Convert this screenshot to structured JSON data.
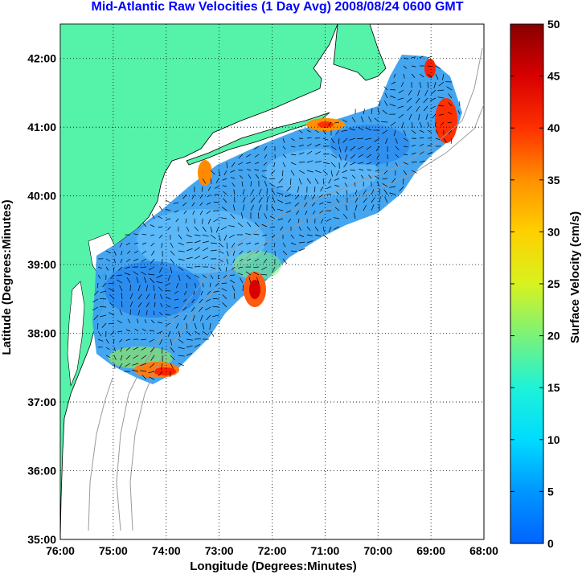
{
  "title": "Mid-Atlantic Raw Velocities (1 Day Avg) 2008/08/24 0600 GMT",
  "map": {
    "xlabel": "Longitude (Degrees:Minutes)",
    "ylabel": "Latitude (Degrees:Minutes)",
    "lon_ticks": [
      "76:00",
      "75:00",
      "74:00",
      "73:00",
      "72:00",
      "71:00",
      "70:00",
      "69:00",
      "68:00"
    ],
    "lat_ticks": [
      "35:00",
      "36:00",
      "37:00",
      "38:00",
      "39:00",
      "40:00",
      "41:00",
      "42:00"
    ],
    "lon_range": [
      -76,
      -68
    ],
    "lat_range": [
      35,
      42.5
    ],
    "grid": true,
    "land_color": "#55f2aa",
    "coast_contour_color": "#9a9a9a"
  },
  "colorbar": {
    "label": "Surface Velocity (cm/s)",
    "ticks": [
      "0",
      "5",
      "10",
      "15",
      "20",
      "25",
      "30",
      "35",
      "40",
      "45",
      "50"
    ],
    "min": 0,
    "max": 50
  }
}
